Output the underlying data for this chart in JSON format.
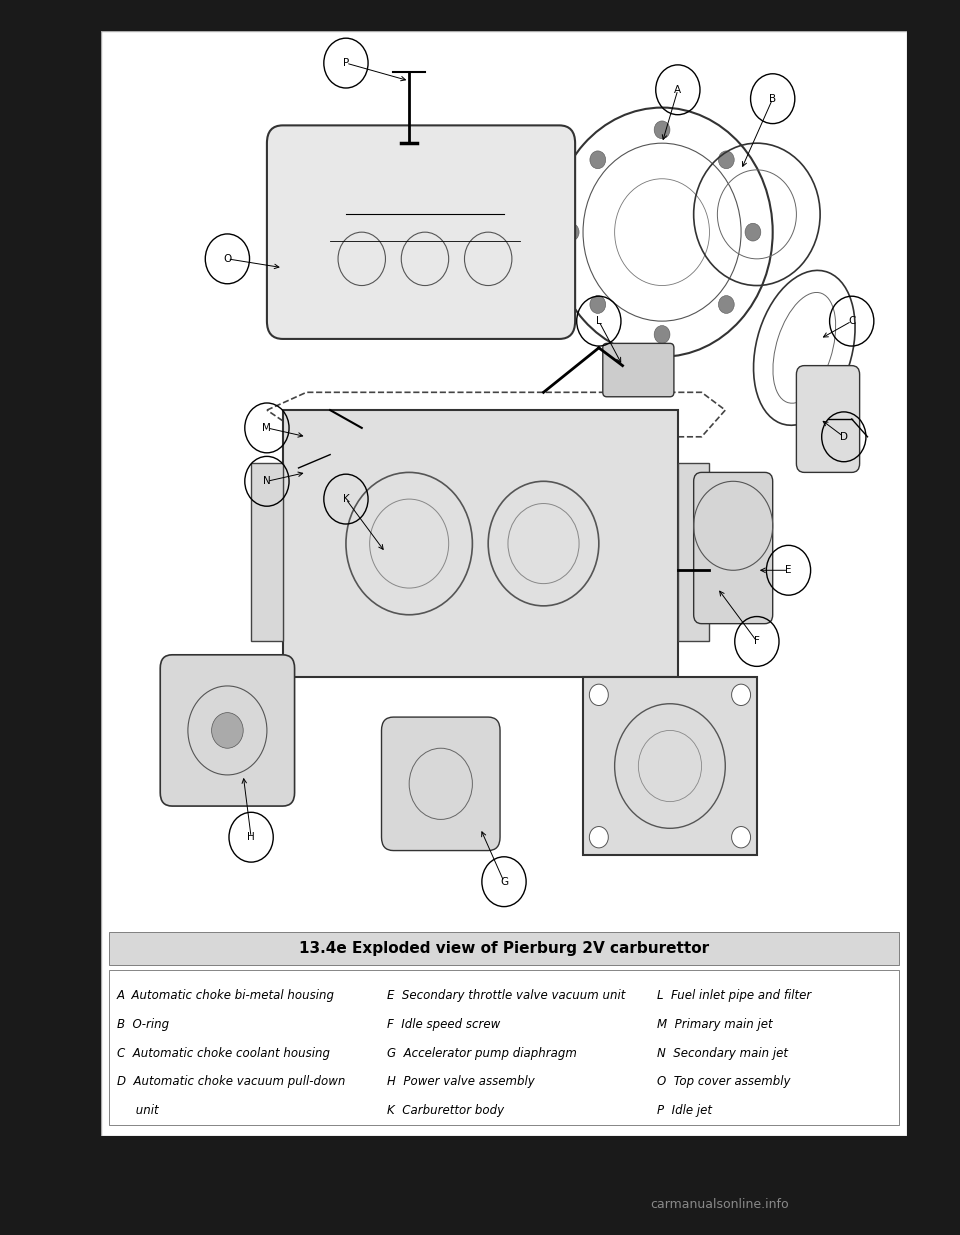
{
  "page_bg": "#1a1a1a",
  "inner_bg": "#ffffff",
  "title_text": "13.4e Exploded view of Pierburg 2V carburettor",
  "title_bg": "#d8d8d8",
  "title_fontsize": 11,
  "legend_items_col1": [
    "A  Automatic choke bi-metal housing",
    "B  O-ring",
    "C  Automatic choke coolant housing",
    "D  Automatic choke vacuum pull-down",
    "     unit"
  ],
  "legend_items_col2": [
    "E  Secondary throttle valve vacuum unit",
    "F  Idle speed screw",
    "G  Accelerator pump diaphragm",
    "H  Power valve assembly",
    "K  Carburettor body"
  ],
  "legend_items_col3": [
    "L  Fuel inlet pipe and filter",
    "M  Primary main jet",
    "N  Secondary main jet",
    "O  Top cover assembly",
    "P  Idle jet"
  ],
  "legend_fontsize": 8.5,
  "footer_text": "carmanualsonline.info",
  "labels_info": [
    [
      "A",
      72,
      94,
      70,
      88
    ],
    [
      "B",
      84,
      93,
      80,
      85
    ],
    [
      "C",
      94,
      68,
      90,
      66
    ],
    [
      "D",
      93,
      55,
      90,
      57
    ],
    [
      "E",
      86,
      40,
      82,
      40
    ],
    [
      "F",
      82,
      32,
      77,
      38
    ],
    [
      "G",
      50,
      5,
      47,
      11
    ],
    [
      "H",
      18,
      10,
      17,
      17
    ],
    [
      "K",
      30,
      48,
      35,
      42
    ],
    [
      "L",
      62,
      68,
      65,
      63
    ],
    [
      "M",
      20,
      56,
      25,
      55
    ],
    [
      "N",
      20,
      50,
      25,
      51
    ],
    [
      "O",
      15,
      75,
      22,
      74
    ],
    [
      "P",
      30,
      97,
      38,
      95
    ]
  ]
}
